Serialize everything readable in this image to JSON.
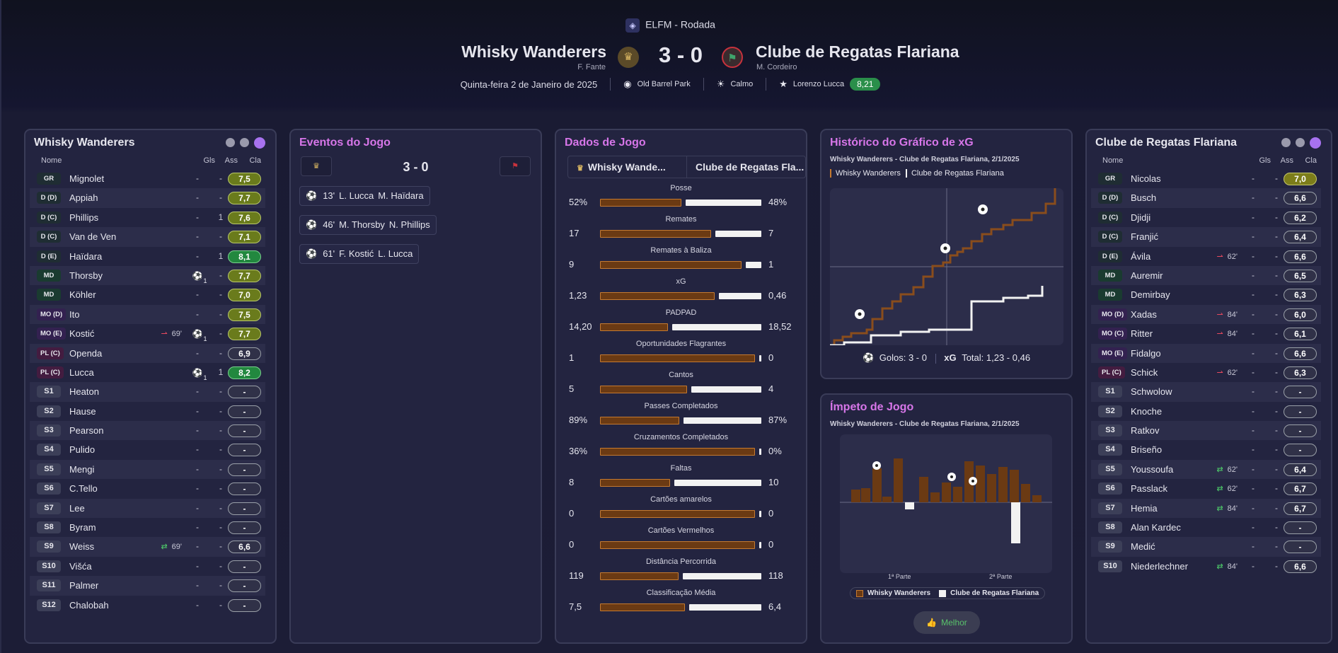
{
  "header": {
    "competition": "ELFM - Rodada",
    "home_team": "Whisky Wanderers",
    "home_manager": "F. Fante",
    "away_team": "Clube de Regatas Flariana",
    "away_manager": "M. Cordeiro",
    "score": "3 - 0",
    "date": "Quinta-feira 2 de Janeiro de 2025",
    "stadium": "Old Barrel Park",
    "weather": "Calmo",
    "motm_name": "Lorenzo Lucca",
    "motm_rating": "8,21"
  },
  "home_panel": {
    "title": "Whisky Wanderers",
    "cols": {
      "name": "Nome",
      "goals": "Gls",
      "assists": "Ass",
      "rating": "Cla"
    },
    "players": [
      {
        "pos": "GR",
        "name": "Mignolet",
        "g": "-",
        "a": "-",
        "r": "7,5",
        "rc": "y"
      },
      {
        "pos": "D (D)",
        "name": "Appiah",
        "g": "-",
        "a": "-",
        "r": "7,7",
        "rc": "y"
      },
      {
        "pos": "D (C)",
        "name": "Phillips",
        "g": "-",
        "a": "1",
        "r": "7,6",
        "rc": "y"
      },
      {
        "pos": "D (C)",
        "name": "Van de Ven",
        "g": "-",
        "a": "-",
        "r": "7,1",
        "rc": "y"
      },
      {
        "pos": "D (E)",
        "name": "Haïdara",
        "g": "-",
        "a": "1",
        "r": "8,1",
        "rc": "g"
      },
      {
        "pos": "MD",
        "name": "Thorsby",
        "g": "1",
        "a": "-",
        "r": "7,7",
        "rc": "y"
      },
      {
        "pos": "MD",
        "name": "Köhler",
        "g": "-",
        "a": "-",
        "r": "7,0",
        "rc": "y"
      },
      {
        "pos": "MO (D)",
        "name": "Ito",
        "g": "-",
        "a": "-",
        "r": "7,5",
        "rc": "y"
      },
      {
        "pos": "MO (E)",
        "name": "Kostić",
        "g": "1",
        "a": "-",
        "r": "7,7",
        "rc": "y",
        "sub": "69'",
        "subdir": "out"
      },
      {
        "pos": "PL (C)",
        "name": "Openda",
        "g": "-",
        "a": "-",
        "r": "6,9",
        "rc": "n"
      },
      {
        "pos": "PL (C)",
        "name": "Lucca",
        "g": "1",
        "a": "1",
        "r": "8,2",
        "rc": "g"
      },
      {
        "pos": "S1",
        "name": "Heaton",
        "g": "-",
        "a": "-",
        "r": "-",
        "rc": "n"
      },
      {
        "pos": "S2",
        "name": "Hause",
        "g": "-",
        "a": "-",
        "r": "-",
        "rc": "n"
      },
      {
        "pos": "S3",
        "name": "Pearson",
        "g": "-",
        "a": "-",
        "r": "-",
        "rc": "n"
      },
      {
        "pos": "S4",
        "name": "Pulido",
        "g": "-",
        "a": "-",
        "r": "-",
        "rc": "n"
      },
      {
        "pos": "S5",
        "name": "Mengi",
        "g": "-",
        "a": "-",
        "r": "-",
        "rc": "n"
      },
      {
        "pos": "S6",
        "name": "C.Tello",
        "g": "-",
        "a": "-",
        "r": "-",
        "rc": "n"
      },
      {
        "pos": "S7",
        "name": "Lee",
        "g": "-",
        "a": "-",
        "r": "-",
        "rc": "n"
      },
      {
        "pos": "S8",
        "name": "Byram",
        "g": "-",
        "a": "-",
        "r": "-",
        "rc": "n"
      },
      {
        "pos": "S9",
        "name": "Weiss",
        "g": "-",
        "a": "-",
        "r": "6,6",
        "rc": "n",
        "sub": "69'",
        "subdir": "swap"
      },
      {
        "pos": "S10",
        "name": "Višća",
        "g": "-",
        "a": "-",
        "r": "-",
        "rc": "n"
      },
      {
        "pos": "S11",
        "name": "Palmer",
        "g": "-",
        "a": "-",
        "r": "-",
        "rc": "n"
      },
      {
        "pos": "S12",
        "name": "Chalobah",
        "g": "-",
        "a": "-",
        "r": "-",
        "rc": "n"
      }
    ]
  },
  "events_panel": {
    "title": "Eventos do Jogo",
    "score": "3 - 0",
    "events": [
      {
        "minute": "13'",
        "scorer": "L. Lucca",
        "assist": "M. Haïdara"
      },
      {
        "minute": "46'",
        "scorer": "M. Thorsby",
        "assist": "N. Phillips"
      },
      {
        "minute": "61'",
        "scorer": "F. Kostić",
        "assist": "L. Lucca"
      }
    ]
  },
  "stats_panel": {
    "title": "Dados de Jogo",
    "home_tab": "Whisky Wande...",
    "away_tab": "Clube de Regatas Fla...",
    "stats": [
      {
        "label": "Posse",
        "home": "52%",
        "away": "48%",
        "hv": 52,
        "av": 48
      },
      {
        "label": "Remates",
        "home": "17",
        "away": "7",
        "hv": 17,
        "av": 7
      },
      {
        "label": "Remates à Baliza",
        "home": "9",
        "away": "1",
        "hv": 9,
        "av": 1
      },
      {
        "label": "xG",
        "home": "1,23",
        "away": "0,46",
        "hv": 1.23,
        "av": 0.46
      },
      {
        "label": "PADPAD",
        "home": "14,20",
        "away": "18,52",
        "hv": 14.2,
        "av": 18.52
      },
      {
        "label": "Oportunidades Flagrantes",
        "home": "1",
        "away": "0",
        "hv": 1,
        "av": 0
      },
      {
        "label": "Cantos",
        "home": "5",
        "away": "4",
        "hv": 5,
        "av": 4
      },
      {
        "label": "Passes Completados",
        "home": "89%",
        "away": "87%",
        "hv": 89,
        "av": 87
      },
      {
        "label": "Cruzamentos Completados",
        "home": "36%",
        "away": "0%",
        "hv": 36,
        "av": 0
      },
      {
        "label": "Faltas",
        "home": "8",
        "away": "10",
        "hv": 8,
        "av": 10
      },
      {
        "label": "Cartões amarelos",
        "home": "0",
        "away": "0",
        "hv": 0,
        "av": 0
      },
      {
        "label": "Cartões Vermelhos",
        "home": "0",
        "away": "0",
        "hv": 0,
        "av": 0
      },
      {
        "label": "Distância Percorrida",
        "home": "119",
        "away": "118",
        "hv": 119,
        "av": 118
      },
      {
        "label": "Classificação Média",
        "home": "7,5",
        "away": "6,4",
        "hv": 7.5,
        "av": 6.4
      }
    ]
  },
  "xg_panel": {
    "title": "Histórico do Gráfico de xG",
    "subtitle": "Whisky Wanderers - Clube de Regatas Flariana, 2/1/2025",
    "legend_home": "Whisky Wanderers",
    "legend_away": "Clube de Regatas Flariana",
    "goals_label": "Golos:",
    "goals_value": "3 - 0",
    "xg_label": "xG",
    "total_label": "Total:",
    "total_value": "1,23  -  0,46"
  },
  "momentum_panel": {
    "title": "Ímpeto de Jogo",
    "subtitle": "Whisky Wanderers - Clube de Regatas Flariana, 2/1/2025",
    "half1": "1ª Parte",
    "half2": "2ª Parte",
    "legend_home": "Whisky Wanderers",
    "legend_away": "Clube de Regatas Flariana",
    "best_label": "Melhor"
  },
  "away_panel": {
    "title": "Clube de Regatas Flariana",
    "cols": {
      "name": "Nome",
      "goals": "Gls",
      "assists": "Ass",
      "rating": "Cla"
    },
    "players": [
      {
        "pos": "GR",
        "name": "Nicolas",
        "g": "-",
        "a": "-",
        "r": "7,0",
        "rc": "o"
      },
      {
        "pos": "D (D)",
        "name": "Busch",
        "g": "-",
        "a": "-",
        "r": "6,6",
        "rc": "n"
      },
      {
        "pos": "D (C)",
        "name": "Djidji",
        "g": "-",
        "a": "-",
        "r": "6,2",
        "rc": "n"
      },
      {
        "pos": "D (C)",
        "name": "Franjić",
        "g": "-",
        "a": "-",
        "r": "6,4",
        "rc": "n"
      },
      {
        "pos": "D (E)",
        "name": "Ávila",
        "g": "-",
        "a": "-",
        "r": "6,6",
        "rc": "n",
        "sub": "62'",
        "subdir": "out"
      },
      {
        "pos": "MD",
        "name": "Auremir",
        "g": "-",
        "a": "-",
        "r": "6,5",
        "rc": "n"
      },
      {
        "pos": "MD",
        "name": "Demirbay",
        "g": "-",
        "a": "-",
        "r": "6,3",
        "rc": "n"
      },
      {
        "pos": "MO (D)",
        "name": "Xadas",
        "g": "-",
        "a": "-",
        "r": "6,0",
        "rc": "n",
        "sub": "84'",
        "subdir": "out"
      },
      {
        "pos": "MO (C)",
        "name": "Ritter",
        "g": "-",
        "a": "-",
        "r": "6,1",
        "rc": "n",
        "sub": "84'",
        "subdir": "out"
      },
      {
        "pos": "MO (E)",
        "name": "Fidalgo",
        "g": "-",
        "a": "-",
        "r": "6,6",
        "rc": "n"
      },
      {
        "pos": "PL (C)",
        "name": "Schick",
        "g": "-",
        "a": "-",
        "r": "6,3",
        "rc": "n",
        "sub": "62'",
        "subdir": "out"
      },
      {
        "pos": "S1",
        "name": "Schwolow",
        "g": "-",
        "a": "-",
        "r": "-",
        "rc": "n"
      },
      {
        "pos": "S2",
        "name": "Knoche",
        "g": "-",
        "a": "-",
        "r": "-",
        "rc": "n"
      },
      {
        "pos": "S3",
        "name": "Ratkov",
        "g": "-",
        "a": "-",
        "r": "-",
        "rc": "n"
      },
      {
        "pos": "S4",
        "name": "Briseño",
        "g": "-",
        "a": "-",
        "r": "-",
        "rc": "n"
      },
      {
        "pos": "S5",
        "name": "Youssoufa",
        "g": "-",
        "a": "-",
        "r": "6,4",
        "rc": "n",
        "sub": "62'",
        "subdir": "in"
      },
      {
        "pos": "S6",
        "name": "Passlack",
        "g": "-",
        "a": "-",
        "r": "6,7",
        "rc": "n",
        "sub": "62'",
        "subdir": "in"
      },
      {
        "pos": "S7",
        "name": "Hemia",
        "g": "-",
        "a": "-",
        "r": "6,7",
        "rc": "n",
        "sub": "84'",
        "subdir": "in"
      },
      {
        "pos": "S8",
        "name": "Alan Kardec",
        "g": "-",
        "a": "-",
        "r": "-",
        "rc": "n"
      },
      {
        "pos": "S9",
        "name": "Medić",
        "g": "-",
        "a": "-",
        "r": "-",
        "rc": "n"
      },
      {
        "pos": "S10",
        "name": "Niederlechner",
        "g": "-",
        "a": "-",
        "r": "6,6",
        "rc": "n",
        "sub": "84'",
        "subdir": "in"
      }
    ]
  },
  "colors": {
    "home": "#6b3a13",
    "home_edge": "#c57a30",
    "away": "#f2f2f2",
    "accent": "#a772ef",
    "title_pink": "#d776e9"
  },
  "icons": {
    "ball": "football-icon",
    "sub_out": "substitution-out-icon",
    "sub_in": "substitution-in-icon",
    "stadium": "stadium-icon",
    "weather": "sun-icon",
    "star": "star-icon",
    "thumbs": "thumbs-up-icon"
  }
}
